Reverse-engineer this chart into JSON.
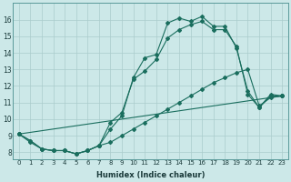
{
  "xlabel": "Humidex (Indice chaleur)",
  "bg_color": "#cce8e8",
  "line_color": "#1a6e5e",
  "grid_color": "#aacccc",
  "xlim": [
    -0.5,
    23.5
  ],
  "ylim": [
    7.6,
    17.0
  ],
  "yticks": [
    8,
    9,
    10,
    11,
    12,
    13,
    14,
    15,
    16
  ],
  "xticks": [
    0,
    1,
    2,
    3,
    4,
    5,
    6,
    7,
    8,
    9,
    10,
    11,
    12,
    13,
    14,
    15,
    16,
    17,
    18,
    19,
    20,
    21,
    22,
    23
  ],
  "line1_x": [
    0,
    1,
    2,
    3,
    4,
    5,
    6,
    7,
    8,
    9,
    10,
    11,
    12,
    13,
    14,
    15,
    16,
    17,
    18,
    19,
    20,
    21,
    22,
    23
  ],
  "line1_y": [
    9.1,
    8.7,
    8.2,
    8.1,
    8.1,
    7.9,
    8.1,
    8.4,
    9.4,
    10.2,
    12.5,
    13.7,
    13.9,
    15.8,
    16.1,
    15.9,
    16.2,
    15.6,
    15.6,
    14.3,
    11.7,
    10.7,
    11.5,
    11.4
  ],
  "line2_x": [
    0,
    1,
    2,
    3,
    4,
    5,
    6,
    7,
    8,
    9,
    10,
    11,
    12,
    13,
    14,
    15,
    16,
    17,
    18,
    19,
    20,
    21,
    22,
    23
  ],
  "line2_y": [
    9.1,
    8.7,
    8.2,
    8.1,
    8.1,
    7.9,
    8.1,
    8.4,
    9.8,
    10.4,
    12.4,
    12.9,
    13.6,
    14.9,
    15.4,
    15.7,
    15.9,
    15.4,
    15.4,
    14.4,
    11.5,
    10.7,
    11.4,
    11.4
  ],
  "line3_x": [
    0,
    1,
    2,
    3,
    4,
    5,
    6,
    7,
    8,
    9,
    10,
    11,
    12,
    13,
    14,
    15,
    16,
    17,
    18,
    19,
    20,
    21,
    22,
    23
  ],
  "line3_y": [
    9.1,
    8.6,
    8.2,
    8.1,
    8.1,
    7.9,
    8.1,
    8.4,
    8.6,
    9.0,
    9.4,
    9.8,
    10.2,
    10.6,
    11.0,
    11.4,
    11.8,
    12.2,
    12.5,
    12.8,
    13.0,
    10.8,
    11.3,
    11.4
  ],
  "line4_x": [
    0,
    23
  ],
  "line4_y": [
    9.1,
    11.4
  ]
}
